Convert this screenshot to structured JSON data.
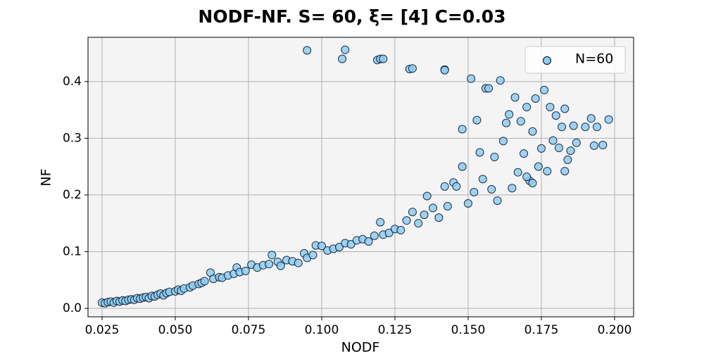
{
  "chart_data": {
    "type": "scatter",
    "title": "NODF-NF. S= 60, ξ= [4] C=0.03",
    "x_label": "NODF",
    "y_label": "NF",
    "x": [
      0.025,
      0.026,
      0.027,
      0.028,
      0.029,
      0.03,
      0.031,
      0.032,
      0.033,
      0.034,
      0.035,
      0.036,
      0.037,
      0.038,
      0.039,
      0.04,
      0.041,
      0.042,
      0.043,
      0.044,
      0.045,
      0.046,
      0.047,
      0.048,
      0.05,
      0.051,
      0.052,
      0.053,
      0.055,
      0.056,
      0.058,
      0.059,
      0.06,
      0.062,
      0.063,
      0.065,
      0.066,
      0.068,
      0.07,
      0.071,
      0.072,
      0.074,
      0.076,
      0.078,
      0.08,
      0.082,
      0.083,
      0.085,
      0.086,
      0.088,
      0.09,
      0.092,
      0.094,
      0.095,
      0.097,
      0.098,
      0.1,
      0.102,
      0.104,
      0.106,
      0.108,
      0.11,
      0.112,
      0.114,
      0.116,
      0.118,
      0.12,
      0.121,
      0.123,
      0.125,
      0.127,
      0.129,
      0.131,
      0.133,
      0.135,
      0.136,
      0.138,
      0.14,
      0.142,
      0.143,
      0.145,
      0.146,
      0.148,
      0.148,
      0.15,
      0.151,
      0.152,
      0.153,
      0.154,
      0.155,
      0.156,
      0.157,
      0.158,
      0.159,
      0.16,
      0.161,
      0.162,
      0.163,
      0.164,
      0.165,
      0.166,
      0.167,
      0.168,
      0.169,
      0.17,
      0.171,
      0.172,
      0.173,
      0.174,
      0.175,
      0.176,
      0.177,
      0.178,
      0.179,
      0.18,
      0.181,
      0.182,
      0.183,
      0.184,
      0.185,
      0.186,
      0.187,
      0.19,
      0.192,
      0.193,
      0.194,
      0.196,
      0.198,
      0.095,
      0.107,
      0.108,
      0.119,
      0.12,
      0.121,
      0.13,
      0.131,
      0.142,
      0.142,
      0.183,
      0.17,
      0.172
    ],
    "series": [
      {
        "name": "N=60",
        "color": "#87cefa",
        "values": [
          0.01,
          0.009,
          0.011,
          0.012,
          0.01,
          0.013,
          0.012,
          0.014,
          0.013,
          0.015,
          0.016,
          0.015,
          0.018,
          0.017,
          0.019,
          0.02,
          0.018,
          0.022,
          0.021,
          0.024,
          0.026,
          0.023,
          0.027,
          0.029,
          0.03,
          0.033,
          0.031,
          0.035,
          0.037,
          0.04,
          0.043,
          0.045,
          0.048,
          0.063,
          0.052,
          0.055,
          0.054,
          0.058,
          0.061,
          0.072,
          0.064,
          0.066,
          0.077,
          0.072,
          0.076,
          0.078,
          0.094,
          0.082,
          0.075,
          0.085,
          0.083,
          0.08,
          0.097,
          0.089,
          0.094,
          0.111,
          0.11,
          0.102,
          0.105,
          0.108,
          0.115,
          0.113,
          0.12,
          0.122,
          0.118,
          0.128,
          0.152,
          0.13,
          0.133,
          0.14,
          0.138,
          0.155,
          0.17,
          0.15,
          0.165,
          0.198,
          0.177,
          0.16,
          0.215,
          0.18,
          0.222,
          0.215,
          0.316,
          0.25,
          0.185,
          0.405,
          0.205,
          0.332,
          0.275,
          0.228,
          0.388,
          0.388,
          0.21,
          0.267,
          0.19,
          0.402,
          0.295,
          0.327,
          0.342,
          0.212,
          0.372,
          0.24,
          0.33,
          0.273,
          0.355,
          0.225,
          0.312,
          0.37,
          0.25,
          0.282,
          0.385,
          0.242,
          0.355,
          0.296,
          0.34,
          0.283,
          0.32,
          0.352,
          0.262,
          0.278,
          0.322,
          0.292,
          0.32,
          0.335,
          0.287,
          0.32,
          0.288,
          0.333,
          0.455,
          0.44,
          0.456,
          0.438,
          0.44,
          0.44,
          0.422,
          0.423,
          0.421,
          0.42,
          0.242,
          0.232,
          0.221
        ]
      }
    ],
    "xlim": [
      0.0202,
      0.2065
    ],
    "ylim": [
      -0.0149,
      0.478
    ],
    "xticks": [
      0.025,
      {
        "value": 0.05,
        "label": "0.050"
      },
      0.075,
      {
        "value": 0.1,
        "label": "0.100"
      },
      0.125,
      {
        "value": 0.15,
        "label": "0.150"
      },
      0.175,
      {
        "value": 0.2,
        "label": "0.200"
      }
    ],
    "yticks": [
      {
        "value": 0,
        "label": "0.0"
      },
      0.1,
      0.2,
      0.3,
      0.4
    ],
    "grid": true,
    "legend": "upper right"
  }
}
